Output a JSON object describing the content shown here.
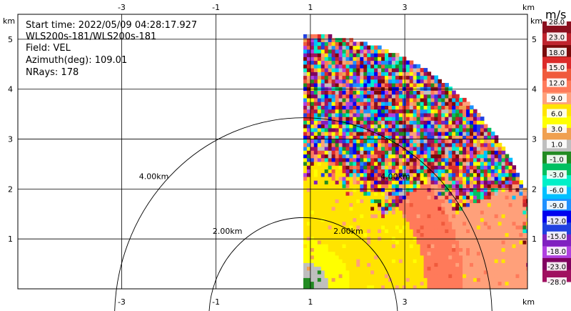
{
  "info": {
    "start_time": "Start time: 2022/05/09 04:28:17.927",
    "instrument": "WLS200s-181/WLS200s-181",
    "field": "Field: VEL",
    "azimuth": "Azimuth(deg): 109.01",
    "nrays": "NRays: 178"
  },
  "chart_data": {
    "type": "heatmap",
    "field": "VEL",
    "xunit": "km",
    "yunit": "km",
    "xlim": [
      -5.2,
      5.6
    ],
    "ylim": [
      0,
      5.5
    ],
    "x_ticks": [
      "-3",
      "-1",
      "1",
      "3"
    ],
    "y_ticks": [
      "1",
      "2",
      "3",
      "4",
      "5"
    ],
    "x_tick_values": [
      -3,
      -1,
      1,
      3
    ],
    "y_tick_values": [
      1,
      2,
      3,
      4,
      5
    ],
    "radar_origin_x_km": 0.85,
    "max_range_km": 5.1,
    "range_rings": [
      {
        "radius_km": 2.0,
        "label": "2.00km"
      },
      {
        "radius_km": 4.0,
        "label": "4.00km"
      }
    ],
    "colorbar": {
      "unit": "m/s",
      "tick_labels": [
        "28.0",
        "23.0",
        "18.0",
        "15.0",
        "12.0",
        "9.0",
        "6.0",
        "3.0",
        "1.0",
        "-1.0",
        "-3.0",
        "-6.0",
        "-9.0",
        "-12.0",
        "-15.0",
        "-18.0",
        "-23.0",
        "-28.0"
      ],
      "colors": [
        "#8b0f1e",
        "#c0242e",
        "#7a0a0a",
        "#dc2a2a",
        "#f05a3c",
        "#ff7a5a",
        "#ffa07a",
        "#ffe400",
        "#ffff00",
        "#f0a050",
        "#bfbfbf",
        "#228b22",
        "#00c060",
        "#00f0c8",
        "#00c0ff",
        "#1e90ff",
        "#0000ee",
        "#2040e0",
        "#8020c0",
        "#b040e0",
        "#800060",
        "#a01060"
      ]
    },
    "velocity_bands": [
      {
        "range_km": [
          0.0,
          0.25
        ],
        "value": -1.0
      },
      {
        "range_km": [
          0.25,
          0.55
        ],
        "value": 1.0
      },
      {
        "range_km": [
          0.55,
          1.0
        ],
        "value": 6.0
      },
      {
        "range_km": [
          1.0,
          2.6
        ],
        "value": 9.0
      },
      {
        "range_km": [
          2.6,
          3.4
        ],
        "value": 15.0
      },
      {
        "range_km": [
          3.4,
          5.1
        ],
        "value": 12.0
      }
    ]
  }
}
